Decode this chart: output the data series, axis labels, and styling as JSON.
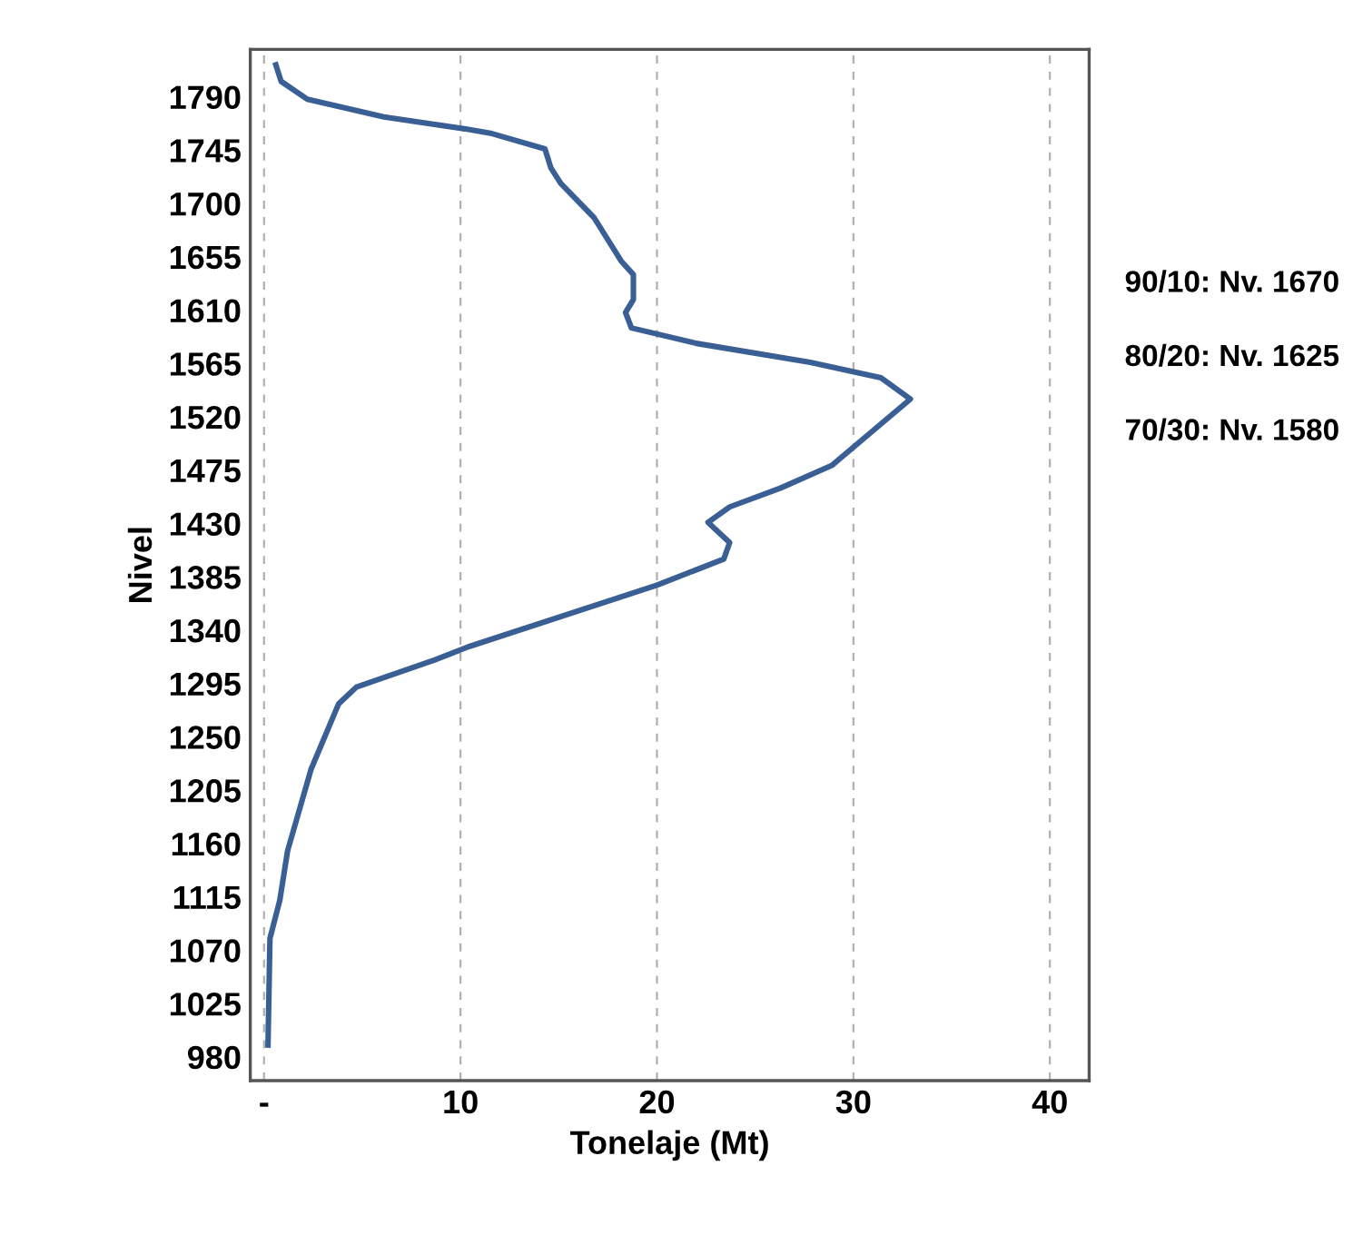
{
  "chart_data": {
    "type": "line",
    "xlabel": "Tonelaje (Mt)",
    "ylabel": "Nivel",
    "x": [
      0.6,
      0.87,
      2.2,
      6.1,
      10.2,
      11.6,
      14.3,
      14.6,
      15.1,
      16.8,
      18.2,
      18.8,
      18.8,
      18.4,
      18.7,
      22.0,
      27.8,
      31.4,
      32.9,
      28.9,
      26.3,
      23.7,
      22.6,
      23.7,
      23.4,
      20.0,
      10.4,
      8.7,
      4.7,
      3.8,
      2.4,
      1.2,
      0.8,
      0.3,
      0.2
    ],
    "series": [
      {
        "color": "#3a5f95",
        "values": [
          1817,
          1803,
          1788,
          1773,
          1763,
          1759,
          1746,
          1730,
          1717,
          1688,
          1651,
          1640,
          1619,
          1608,
          1595,
          1582,
          1566,
          1553,
          1535,
          1479,
          1460,
          1444,
          1431,
          1414,
          1400,
          1378,
          1326,
          1315,
          1292,
          1278,
          1223,
          1154,
          1112,
          1080,
          990
        ]
      }
    ],
    "xlim": [
      -0.7,
      42
    ],
    "xticks": [
      {
        "value": 0,
        "label": "-"
      },
      10,
      20,
      30,
      40
    ],
    "ylim": [
      960,
      1830
    ],
    "yticks": [
      980,
      1025,
      1070,
      1115,
      1160,
      1205,
      1250,
      1295,
      1340,
      1385,
      1430,
      1475,
      1520,
      1565,
      1610,
      1655,
      1700,
      1745,
      1790
    ],
    "grid": "x",
    "legend": false,
    "marker": "none",
    "line_style": "solid",
    "annotations": [
      "90/10: Nv. 1670",
      "80/20: Nv. 1625",
      "70/30: Nv. 1580"
    ]
  }
}
